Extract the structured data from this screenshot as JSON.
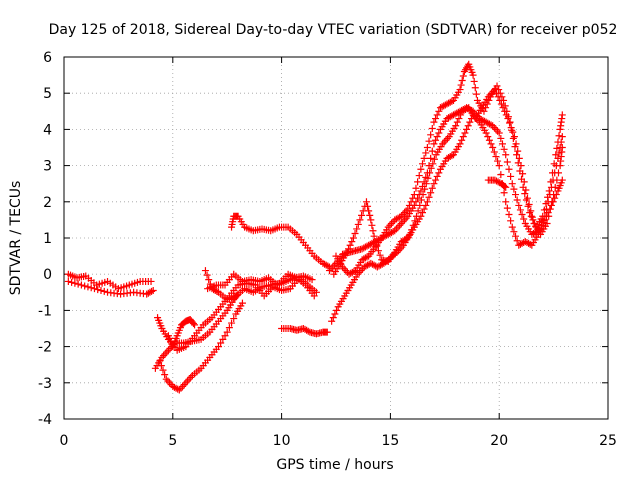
{
  "chart_data": {
    "type": "scatter",
    "title": "Day 125 of 2018, Sidereal Day-to-day VTEC variation (SDTVAR) for receiver p052",
    "xlabel": "GPS time / hours",
    "ylabel": "SDTVAR / TECUs",
    "xlim": [
      0,
      25
    ],
    "ylim": [
      -4,
      6
    ],
    "xticks": [
      "0",
      "5",
      "10",
      "15",
      "20",
      "25"
    ],
    "yticks": [
      "-4",
      "-3",
      "-2",
      "-1",
      "0",
      "1",
      "2",
      "3",
      "4",
      "5",
      "6"
    ],
    "grid": true,
    "marker": "plus",
    "color": "#ff0000",
    "series": [
      {
        "name": "SDTVAR",
        "segments": [
          [
            [
              0.2,
              -0.2
            ],
            [
              0.8,
              -0.3
            ],
            [
              1.4,
              -0.4
            ],
            [
              2.0,
              -0.5
            ],
            [
              2.6,
              -0.55
            ],
            [
              3.2,
              -0.5
            ],
            [
              3.8,
              -0.55
            ],
            [
              4.1,
              -0.45
            ]
          ],
          [
            [
              0.2,
              0.0
            ],
            [
              0.6,
              -0.1
            ],
            [
              1.0,
              -0.05
            ],
            [
              1.5,
              -0.3
            ],
            [
              2.0,
              -0.2
            ],
            [
              2.5,
              -0.4
            ],
            [
              3.0,
              -0.3
            ],
            [
              3.5,
              -0.2
            ],
            [
              4.0,
              -0.2
            ]
          ],
          [
            [
              4.2,
              -2.6
            ],
            [
              4.5,
              -2.3
            ],
            [
              4.8,
              -2.1
            ],
            [
              5.1,
              -1.9
            ],
            [
              5.5,
              -1.9
            ],
            [
              5.9,
              -1.85
            ],
            [
              6.3,
              -1.8
            ],
            [
              6.7,
              -1.6
            ],
            [
              7.1,
              -1.3
            ],
            [
              7.5,
              -1.0
            ],
            [
              7.8,
              -0.7
            ],
            [
              8.0,
              -0.55
            ]
          ],
          [
            [
              4.3,
              -1.2
            ],
            [
              4.5,
              -1.5
            ],
            [
              4.8,
              -1.8
            ],
            [
              5.2,
              -2.1
            ],
            [
              5.6,
              -2.0
            ],
            [
              6.0,
              -1.7
            ],
            [
              6.4,
              -1.4
            ],
            [
              6.8,
              -1.2
            ],
            [
              7.2,
              -0.9
            ],
            [
              7.6,
              -0.6
            ],
            [
              8.0,
              -0.3
            ],
            [
              8.4,
              -0.25
            ],
            [
              8.8,
              -0.3
            ],
            [
              9.2,
              -0.6
            ],
            [
              9.6,
              -0.35
            ],
            [
              10.0,
              -0.45
            ],
            [
              10.4,
              -0.4
            ],
            [
              10.8,
              -0.1
            ],
            [
              11.2,
              -0.3
            ],
            [
              11.6,
              -0.5
            ]
          ],
          [
            [
              4.4,
              -2.4
            ],
            [
              4.7,
              -2.9
            ],
            [
              5.0,
              -3.1
            ],
            [
              5.3,
              -3.2
            ],
            [
              5.6,
              -3.0
            ],
            [
              5.9,
              -2.8
            ],
            [
              6.3,
              -2.6
            ],
            [
              6.7,
              -2.3
            ],
            [
              7.1,
              -2.0
            ],
            [
              7.5,
              -1.6
            ],
            [
              7.9,
              -1.1
            ],
            [
              8.2,
              -0.8
            ]
          ],
          [
            [
              4.8,
              -1.7
            ],
            [
              5.0,
              -2.0
            ],
            [
              5.2,
              -1.7
            ],
            [
              5.4,
              -1.4
            ],
            [
              5.6,
              -1.3
            ],
            [
              5.8,
              -1.25
            ],
            [
              6.0,
              -1.4
            ]
          ],
          [
            [
              6.5,
              0.1
            ],
            [
              6.8,
              -0.4
            ],
            [
              7.1,
              -0.5
            ],
            [
              7.5,
              -0.7
            ],
            [
              7.9,
              -0.6
            ],
            [
              8.3,
              -0.4
            ],
            [
              8.7,
              -0.5
            ],
            [
              9.1,
              -0.35
            ],
            [
              9.5,
              -0.3
            ],
            [
              9.9,
              -0.25
            ],
            [
              10.3,
              0.0
            ],
            [
              10.7,
              -0.1
            ],
            [
              11.1,
              -0.3
            ],
            [
              11.5,
              -0.6
            ]
          ],
          [
            [
              6.6,
              -0.4
            ],
            [
              7.0,
              -0.3
            ],
            [
              7.4,
              -0.3
            ],
            [
              7.8,
              0.0
            ],
            [
              8.2,
              -0.2
            ],
            [
              8.6,
              -0.15
            ],
            [
              9.0,
              -0.2
            ],
            [
              9.4,
              -0.1
            ],
            [
              9.8,
              -0.3
            ],
            [
              10.2,
              -0.2
            ],
            [
              10.6,
              -0.1
            ],
            [
              11.0,
              -0.05
            ],
            [
              11.4,
              -0.15
            ]
          ],
          [
            [
              7.7,
              1.3
            ],
            [
              7.8,
              1.6
            ],
            [
              8.0,
              1.6
            ],
            [
              8.3,
              1.3
            ],
            [
              8.7,
              1.2
            ],
            [
              9.1,
              1.25
            ],
            [
              9.5,
              1.2
            ],
            [
              9.9,
              1.3
            ],
            [
              10.3,
              1.3
            ],
            [
              10.7,
              1.1
            ],
            [
              11.1,
              0.8
            ],
            [
              11.5,
              0.5
            ],
            [
              11.9,
              0.3
            ],
            [
              12.2,
              0.2
            ]
          ],
          [
            [
              10.0,
              -1.5
            ],
            [
              10.4,
              -1.5
            ],
            [
              10.7,
              -1.55
            ],
            [
              11.0,
              -1.5
            ],
            [
              11.3,
              -1.6
            ],
            [
              11.6,
              -1.65
            ],
            [
              11.9,
              -1.6
            ],
            [
              12.1,
              -1.6
            ]
          ],
          [
            [
              12.2,
              0.1
            ],
            [
              12.5,
              0.3
            ],
            [
              12.8,
              0.55
            ],
            [
              13.1,
              0.6
            ],
            [
              13.4,
              0.65
            ],
            [
              13.7,
              0.7
            ],
            [
              14.0,
              0.8
            ],
            [
              14.3,
              0.9
            ],
            [
              14.6,
              1.0
            ],
            [
              14.9,
              1.1
            ],
            [
              15.2,
              1.2
            ],
            [
              15.5,
              1.4
            ],
            [
              15.8,
              1.6
            ],
            [
              16.1,
              1.9
            ],
            [
              16.4,
              2.3
            ],
            [
              16.7,
              2.8
            ],
            [
              17.0,
              3.6
            ],
            [
              17.3,
              4.0
            ],
            [
              17.6,
              4.3
            ],
            [
              17.9,
              4.4
            ],
            [
              18.2,
              4.5
            ],
            [
              18.5,
              4.6
            ],
            [
              18.8,
              4.5
            ],
            [
              19.1,
              4.3
            ],
            [
              19.4,
              4.2
            ],
            [
              19.7,
              4.1
            ],
            [
              20.0,
              3.9
            ],
            [
              20.3,
              3.3
            ],
            [
              20.6,
              2.5
            ],
            [
              20.9,
              1.9
            ],
            [
              21.2,
              1.4
            ],
            [
              21.5,
              1.1
            ],
            [
              21.8,
              1.2
            ],
            [
              22.1,
              1.5
            ],
            [
              22.4,
              1.9
            ],
            [
              22.7,
              2.3
            ],
            [
              22.9,
              2.6
            ]
          ],
          [
            [
              12.3,
              -1.3
            ],
            [
              12.6,
              -0.9
            ],
            [
              12.9,
              -0.6
            ],
            [
              13.2,
              -0.3
            ],
            [
              13.5,
              0.0
            ],
            [
              13.8,
              0.2
            ],
            [
              14.1,
              0.3
            ],
            [
              14.4,
              0.2
            ],
            [
              14.7,
              0.3
            ],
            [
              15.0,
              0.45
            ],
            [
              15.3,
              0.6
            ],
            [
              15.6,
              0.8
            ],
            [
              15.9,
              1.1
            ],
            [
              16.2,
              1.6
            ],
            [
              16.5,
              2.2
            ],
            [
              16.8,
              2.8
            ],
            [
              17.1,
              3.3
            ],
            [
              17.4,
              3.6
            ],
            [
              17.7,
              3.8
            ],
            [
              18.0,
              4.1
            ],
            [
              18.3,
              4.5
            ],
            [
              18.6,
              4.6
            ],
            [
              18.9,
              4.3
            ],
            [
              19.2,
              4.6
            ],
            [
              19.5,
              4.9
            ],
            [
              19.8,
              5.1
            ],
            [
              20.1,
              4.7
            ],
            [
              20.4,
              4.3
            ],
            [
              20.7,
              3.8
            ],
            [
              21.0,
              3.0
            ],
            [
              21.3,
              2.1
            ],
            [
              21.6,
              1.4
            ],
            [
              21.9,
              1.1
            ],
            [
              22.2,
              1.4
            ],
            [
              22.5,
              2.2
            ],
            [
              22.8,
              3.0
            ],
            [
              22.9,
              3.5
            ]
          ],
          [
            [
              12.4,
              0.0
            ],
            [
              12.7,
              0.3
            ],
            [
              13.0,
              0.6
            ],
            [
              13.3,
              1.0
            ],
            [
              13.6,
              1.5
            ],
            [
              13.9,
              2.0
            ],
            [
              14.1,
              1.5
            ],
            [
              14.3,
              0.9
            ],
            [
              14.6,
              0.4
            ],
            [
              14.9,
              0.35
            ],
            [
              15.2,
              0.6
            ],
            [
              15.5,
              0.9
            ],
            [
              15.8,
              1.0
            ],
            [
              16.1,
              1.3
            ],
            [
              16.4,
              1.6
            ],
            [
              16.7,
              2.0
            ],
            [
              17.0,
              2.5
            ],
            [
              17.3,
              2.9
            ],
            [
              17.6,
              3.2
            ],
            [
              17.9,
              3.3
            ],
            [
              18.2,
              3.6
            ],
            [
              18.5,
              4.0
            ],
            [
              18.8,
              4.4
            ],
            [
              19.1,
              4.2
            ],
            [
              19.4,
              3.9
            ],
            [
              19.7,
              3.5
            ],
            [
              20.0,
              3.0
            ],
            [
              20.3,
              2.0
            ],
            [
              20.6,
              1.3
            ],
            [
              20.9,
              0.8
            ],
            [
              21.2,
              0.9
            ],
            [
              21.5,
              0.8
            ],
            [
              21.8,
              1.1
            ],
            [
              22.1,
              1.6
            ],
            [
              22.4,
              2.4
            ],
            [
              22.7,
              3.2
            ],
            [
              22.9,
              3.8
            ]
          ],
          [
            [
              12.5,
              0.5
            ],
            [
              12.8,
              0.2
            ],
            [
              13.1,
              0.0
            ],
            [
              13.4,
              0.1
            ],
            [
              13.7,
              0.4
            ],
            [
              14.0,
              0.5
            ],
            [
              14.3,
              0.75
            ],
            [
              14.6,
              1.0
            ],
            [
              14.9,
              1.3
            ],
            [
              15.2,
              1.5
            ],
            [
              15.5,
              1.6
            ],
            [
              15.8,
              1.8
            ],
            [
              16.1,
              2.2
            ],
            [
              16.4,
              2.9
            ],
            [
              16.7,
              3.5
            ],
            [
              17.0,
              4.2
            ],
            [
              17.3,
              4.6
            ],
            [
              17.6,
              4.7
            ],
            [
              17.9,
              4.8
            ],
            [
              18.2,
              5.1
            ],
            [
              18.4,
              5.6
            ],
            [
              18.6,
              5.8
            ],
            [
              18.8,
              5.5
            ],
            [
              19.0,
              4.8
            ],
            [
              19.3,
              4.5
            ],
            [
              19.6,
              4.9
            ],
            [
              19.9,
              5.2
            ],
            [
              20.2,
              4.8
            ],
            [
              20.5,
              4.2
            ],
            [
              20.8,
              3.3
            ],
            [
              21.1,
              2.4
            ],
            [
              21.4,
              1.7
            ],
            [
              21.7,
              1.3
            ],
            [
              22.0,
              1.6
            ],
            [
              22.3,
              2.3
            ],
            [
              22.6,
              3.3
            ],
            [
              22.8,
              4.0
            ],
            [
              22.9,
              4.4
            ]
          ],
          [
            [
              19.5,
              2.6
            ],
            [
              19.8,
              2.6
            ],
            [
              20.1,
              2.5
            ],
            [
              20.3,
              2.4
            ]
          ]
        ]
      }
    ]
  }
}
